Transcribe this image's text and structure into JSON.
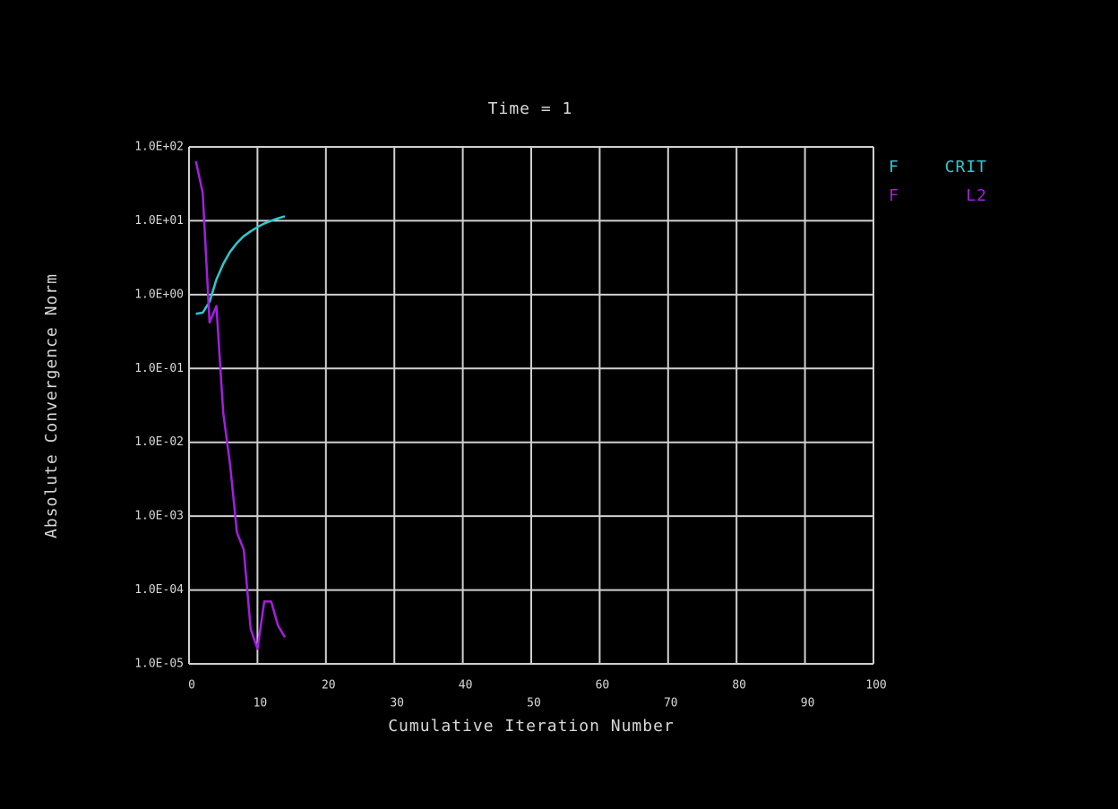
{
  "chart_data": {
    "type": "line",
    "title": "Time = 1",
    "x_label": "Cumulative Iteration Number",
    "y_label": "Absolute Convergence Norm",
    "log_y": true,
    "grid": true,
    "legend_position": "right",
    "xlim": [
      0,
      100
    ],
    "xticks": [
      0,
      10,
      20,
      30,
      40,
      50,
      60,
      70,
      80,
      90,
      100
    ],
    "ylim": [
      1e-05,
      100
    ],
    "yticks": [
      {
        "value": 100,
        "label": "1.0E+02"
      },
      {
        "value": 10,
        "label": "1.0E+01"
      },
      {
        "value": 1,
        "label": "1.0E+00"
      },
      {
        "value": 0.1,
        "label": "1.0E-01"
      },
      {
        "value": 0.01,
        "label": "1.0E-02"
      },
      {
        "value": 0.001,
        "label": "1.0E-03"
      },
      {
        "value": 0.0001,
        "label": "1.0E-04"
      },
      {
        "value": 1e-05,
        "label": "1.0E-05"
      }
    ],
    "x": [
      1,
      2,
      3,
      4,
      5,
      6,
      7,
      8,
      9,
      10,
      11,
      12,
      13,
      14
    ],
    "series": [
      {
        "quantity": "F",
        "name": "CRIT",
        "color": "#2ec8d0",
        "values": [
          0.55,
          0.57,
          0.8,
          1.6,
          2.6,
          3.8,
          5.0,
          6.2,
          7.2,
          8.2,
          9.2,
          10.0,
          10.8,
          11.5
        ]
      },
      {
        "quantity": "F",
        "name": "L2",
        "color": "#a41ee0",
        "values": [
          64,
          24,
          0.42,
          0.7,
          0.025,
          0.005,
          0.0006,
          0.00035,
          3e-05,
          1.6e-05,
          7e-05,
          7e-05,
          3.3e-05,
          2.3e-05
        ]
      }
    ]
  }
}
